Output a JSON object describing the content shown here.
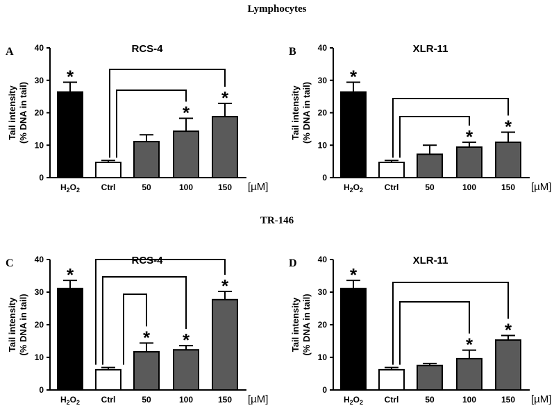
{
  "sections": [
    "Lymphocytes",
    "TR-146"
  ],
  "chart_data": [
    {
      "panel": "A",
      "type": "bar",
      "title": "RCS-4",
      "ylabel": [
        "Tail intensity",
        "(% DNA in tail)"
      ],
      "unit": "[µM]",
      "ylim": [
        0,
        40
      ],
      "yticks": [
        0,
        10,
        20,
        30,
        40
      ],
      "categories": [
        "H2O2",
        "Ctrl",
        "50",
        "100",
        "150"
      ],
      "values": [
        26.4,
        4.7,
        11.1,
        14.3,
        18.8
      ],
      "errors": [
        3.0,
        0.6,
        2.1,
        4.0,
        4.1
      ],
      "significant": [
        true,
        false,
        false,
        true,
        true
      ],
      "comparisons": [
        [
          "Ctrl",
          "100"
        ],
        [
          "Ctrl",
          "150"
        ]
      ],
      "colors": [
        "#000000",
        "#ffffff",
        "#5a5a5a",
        "#5a5a5a",
        "#5a5a5a"
      ]
    },
    {
      "panel": "B",
      "type": "bar",
      "title": "XLR-11",
      "ylabel": [
        "Tail intensity",
        "(% DNA in tail)"
      ],
      "unit": "[µM]",
      "ylim": [
        0,
        40
      ],
      "yticks": [
        0,
        10,
        20,
        30,
        40
      ],
      "categories": [
        "H2O2",
        "Ctrl",
        "50",
        "100",
        "150"
      ],
      "values": [
        26.4,
        4.7,
        7.2,
        9.4,
        10.9
      ],
      "errors": [
        3.0,
        0.6,
        2.8,
        1.5,
        3.1
      ],
      "significant": [
        true,
        false,
        false,
        true,
        true
      ],
      "comparisons": [
        [
          "Ctrl",
          "100"
        ],
        [
          "Ctrl",
          "150"
        ]
      ],
      "colors": [
        "#000000",
        "#ffffff",
        "#5a5a5a",
        "#5a5a5a",
        "#5a5a5a"
      ]
    },
    {
      "panel": "C",
      "type": "bar",
      "title": "RCS-4",
      "ylabel": [
        "Tail intensity",
        "(% DNA in tail)"
      ],
      "unit": "[µM]",
      "ylim": [
        0,
        40
      ],
      "yticks": [
        0,
        10,
        20,
        30,
        40
      ],
      "categories": [
        "H2O2",
        "Ctrl",
        "50",
        "100",
        "150"
      ],
      "values": [
        31.1,
        6.2,
        11.7,
        12.3,
        27.7
      ],
      "errors": [
        2.5,
        0.7,
        2.7,
        1.3,
        2.5
      ],
      "significant": [
        true,
        false,
        true,
        true,
        true
      ],
      "comparisons": [
        [
          "Ctrl",
          "50"
        ],
        [
          "Ctrl",
          "100"
        ],
        [
          "Ctrl",
          "150"
        ]
      ],
      "colors": [
        "#000000",
        "#ffffff",
        "#5a5a5a",
        "#5a5a5a",
        "#5a5a5a"
      ]
    },
    {
      "panel": "D",
      "type": "bar",
      "title": "XLR-11",
      "ylabel": [
        "Tail intensity",
        "(% DNA in tail)"
      ],
      "unit": "[µM]",
      "ylim": [
        0,
        40
      ],
      "yticks": [
        0,
        10,
        20,
        30,
        40
      ],
      "categories": [
        "H2O2",
        "Ctrl",
        "50",
        "100",
        "150"
      ],
      "values": [
        31.1,
        6.2,
        7.5,
        9.6,
        15.3
      ],
      "errors": [
        2.5,
        0.7,
        0.6,
        2.6,
        1.4
      ],
      "significant": [
        true,
        false,
        false,
        true,
        true
      ],
      "comparisons": [
        [
          "Ctrl",
          "100"
        ],
        [
          "Ctrl",
          "150"
        ]
      ],
      "colors": [
        "#000000",
        "#ffffff",
        "#5a5a5a",
        "#5a5a5a",
        "#5a5a5a"
      ]
    }
  ]
}
